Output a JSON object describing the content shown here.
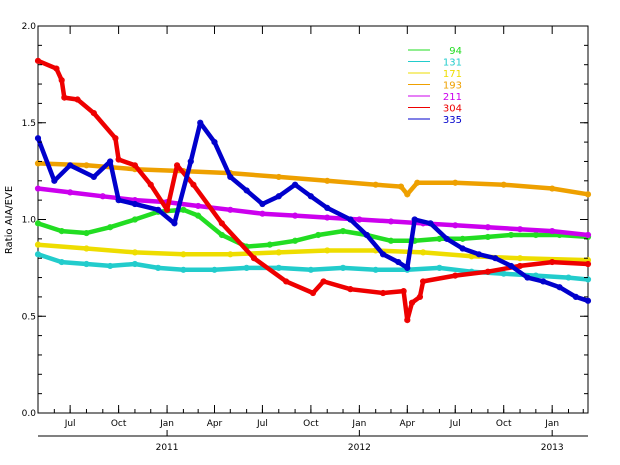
{
  "chart_data": {
    "type": "line",
    "title": "",
    "xlabel": "",
    "ylabel": "Ratio AIA/EVE",
    "ylim": [
      0.0,
      2.0
    ],
    "xlim": [
      "2010-05-01",
      "2013-03-10"
    ],
    "yticks": [
      "0.0",
      "0.5",
      "1.0",
      "1.5",
      "2.0"
    ],
    "month_ticks": [
      {
        "date": "2010-07-01",
        "label": "Jul"
      },
      {
        "date": "2010-10-01",
        "label": "Oct"
      },
      {
        "date": "2011-01-01",
        "label": "Jan"
      },
      {
        "date": "2011-04-01",
        "label": "Apr"
      },
      {
        "date": "2011-07-01",
        "label": "Jul"
      },
      {
        "date": "2011-10-01",
        "label": "Oct"
      },
      {
        "date": "2012-01-01",
        "label": "Jan"
      },
      {
        "date": "2012-04-01",
        "label": "Apr"
      },
      {
        "date": "2012-07-01",
        "label": "Jul"
      },
      {
        "date": "2012-10-01",
        "label": "Oct"
      },
      {
        "date": "2013-01-01",
        "label": "Jan"
      }
    ],
    "year_labels": [
      {
        "date": "2011-01-01",
        "label": "2011"
      },
      {
        "date": "2012-01-01",
        "label": "2012"
      },
      {
        "date": "2013-01-01",
        "label": "2013"
      }
    ],
    "grid": false,
    "legend_position": "top-right",
    "series": [
      {
        "name": "94",
        "color": "#22dd22",
        "points": [
          [
            "2010-05-01",
            0.98
          ],
          [
            "2010-06-15",
            0.94
          ],
          [
            "2010-08-01",
            0.93
          ],
          [
            "2010-09-15",
            0.96
          ],
          [
            "2010-11-01",
            1.0
          ],
          [
            "2010-12-15",
            1.04
          ],
          [
            "2011-02-01",
            1.05
          ],
          [
            "2011-03-01",
            1.02
          ],
          [
            "2011-04-15",
            0.92
          ],
          [
            "2011-06-01",
            0.86
          ],
          [
            "2011-07-15",
            0.87
          ],
          [
            "2011-09-01",
            0.89
          ],
          [
            "2011-10-15",
            0.92
          ],
          [
            "2011-12-01",
            0.94
          ],
          [
            "2012-01-15",
            0.92
          ],
          [
            "2012-03-01",
            0.89
          ],
          [
            "2012-04-15",
            0.89
          ],
          [
            "2012-06-01",
            0.9
          ],
          [
            "2012-07-15",
            0.9
          ],
          [
            "2012-09-01",
            0.91
          ],
          [
            "2012-10-15",
            0.92
          ],
          [
            "2012-12-01",
            0.92
          ],
          [
            "2013-01-15",
            0.92
          ],
          [
            "2013-03-10",
            0.91
          ]
        ]
      },
      {
        "name": "131",
        "color": "#22cccc",
        "points": [
          [
            "2010-05-01",
            0.82
          ],
          [
            "2010-06-15",
            0.78
          ],
          [
            "2010-08-01",
            0.77
          ],
          [
            "2010-09-15",
            0.76
          ],
          [
            "2010-11-01",
            0.77
          ],
          [
            "2010-12-15",
            0.75
          ],
          [
            "2011-02-01",
            0.74
          ],
          [
            "2011-04-01",
            0.74
          ],
          [
            "2011-06-01",
            0.75
          ],
          [
            "2011-08-01",
            0.75
          ],
          [
            "2011-10-01",
            0.74
          ],
          [
            "2011-12-01",
            0.75
          ],
          [
            "2012-02-01",
            0.74
          ],
          [
            "2012-04-01",
            0.74
          ],
          [
            "2012-06-01",
            0.75
          ],
          [
            "2012-08-01",
            0.73
          ],
          [
            "2012-10-01",
            0.72
          ],
          [
            "2012-12-01",
            0.71
          ],
          [
            "2013-02-01",
            0.7
          ],
          [
            "2013-03-10",
            0.69
          ]
        ]
      },
      {
        "name": "171",
        "color": "#eedd00",
        "points": [
          [
            "2010-05-01",
            0.87
          ],
          [
            "2010-08-01",
            0.85
          ],
          [
            "2010-11-01",
            0.83
          ],
          [
            "2011-02-01",
            0.82
          ],
          [
            "2011-05-01",
            0.82
          ],
          [
            "2011-08-01",
            0.83
          ],
          [
            "2011-11-01",
            0.84
          ],
          [
            "2012-02-01",
            0.84
          ],
          [
            "2012-05-01",
            0.83
          ],
          [
            "2012-08-01",
            0.81
          ],
          [
            "2012-11-01",
            0.8
          ],
          [
            "2013-03-10",
            0.79
          ]
        ]
      },
      {
        "name": "193",
        "color": "#eea000",
        "points": [
          [
            "2010-05-01",
            1.29
          ],
          [
            "2010-08-01",
            1.28
          ],
          [
            "2010-11-01",
            1.26
          ],
          [
            "2011-02-01",
            1.25
          ],
          [
            "2011-05-01",
            1.24
          ],
          [
            "2011-08-01",
            1.22
          ],
          [
            "2011-11-01",
            1.2
          ],
          [
            "2012-02-01",
            1.18
          ],
          [
            "2012-03-20",
            1.17
          ],
          [
            "2012-04-01",
            1.13
          ],
          [
            "2012-04-20",
            1.19
          ],
          [
            "2012-07-01",
            1.19
          ],
          [
            "2012-10-01",
            1.18
          ],
          [
            "2013-01-01",
            1.16
          ],
          [
            "2013-03-10",
            1.13
          ]
        ]
      },
      {
        "name": "211",
        "color": "#cc00ee",
        "points": [
          [
            "2010-05-01",
            1.16
          ],
          [
            "2010-07-01",
            1.14
          ],
          [
            "2010-09-01",
            1.12
          ],
          [
            "2010-11-01",
            1.1
          ],
          [
            "2011-01-01",
            1.09
          ],
          [
            "2011-03-01",
            1.07
          ],
          [
            "2011-05-01",
            1.05
          ],
          [
            "2011-07-01",
            1.03
          ],
          [
            "2011-09-01",
            1.02
          ],
          [
            "2011-11-01",
            1.01
          ],
          [
            "2012-01-01",
            1.0
          ],
          [
            "2012-03-01",
            0.99
          ],
          [
            "2012-05-01",
            0.98
          ],
          [
            "2012-07-01",
            0.97
          ],
          [
            "2012-09-01",
            0.96
          ],
          [
            "2012-11-01",
            0.95
          ],
          [
            "2013-01-01",
            0.94
          ],
          [
            "2013-03-10",
            0.92
          ]
        ]
      },
      {
        "name": "304",
        "color": "#ee0000",
        "points": [
          [
            "2010-05-01",
            1.82
          ],
          [
            "2010-06-05",
            1.78
          ],
          [
            "2010-06-15",
            1.72
          ],
          [
            "2010-06-20",
            1.63
          ],
          [
            "2010-07-15",
            1.62
          ],
          [
            "2010-08-15",
            1.55
          ],
          [
            "2010-09-25",
            1.42
          ],
          [
            "2010-10-01",
            1.31
          ],
          [
            "2010-11-01",
            1.28
          ],
          [
            "2010-12-01",
            1.18
          ],
          [
            "2011-01-01",
            1.05
          ],
          [
            "2011-01-20",
            1.28
          ],
          [
            "2011-02-20",
            1.18
          ],
          [
            "2011-04-15",
            0.98
          ],
          [
            "2011-06-15",
            0.8
          ],
          [
            "2011-08-15",
            0.68
          ],
          [
            "2011-10-05",
            0.62
          ],
          [
            "2011-10-25",
            0.68
          ],
          [
            "2011-12-15",
            0.64
          ],
          [
            "2012-02-15",
            0.62
          ],
          [
            "2012-03-25",
            0.63
          ],
          [
            "2012-04-01",
            0.48
          ],
          [
            "2012-04-10",
            0.57
          ],
          [
            "2012-04-25",
            0.6
          ],
          [
            "2012-05-01",
            0.68
          ],
          [
            "2012-07-01",
            0.71
          ],
          [
            "2012-09-01",
            0.73
          ],
          [
            "2012-11-01",
            0.76
          ],
          [
            "2013-01-01",
            0.78
          ],
          [
            "2013-03-10",
            0.77
          ]
        ]
      },
      {
        "name": "335",
        "color": "#0000cc",
        "points": [
          [
            "2010-05-01",
            1.42
          ],
          [
            "2010-06-01",
            1.2
          ],
          [
            "2010-07-01",
            1.28
          ],
          [
            "2010-08-15",
            1.22
          ],
          [
            "2010-09-15",
            1.3
          ],
          [
            "2010-10-01",
            1.1
          ],
          [
            "2010-11-01",
            1.08
          ],
          [
            "2010-12-15",
            1.05
          ],
          [
            "2011-01-15",
            0.98
          ],
          [
            "2011-02-15",
            1.3
          ],
          [
            "2011-03-05",
            1.5
          ],
          [
            "2011-04-01",
            1.4
          ],
          [
            "2011-05-01",
            1.22
          ],
          [
            "2011-06-01",
            1.15
          ],
          [
            "2011-07-01",
            1.08
          ],
          [
            "2011-08-01",
            1.12
          ],
          [
            "2011-09-01",
            1.18
          ],
          [
            "2011-10-01",
            1.12
          ],
          [
            "2011-11-01",
            1.06
          ],
          [
            "2011-12-15",
            1.0
          ],
          [
            "2012-01-15",
            0.92
          ],
          [
            "2012-02-15",
            0.82
          ],
          [
            "2012-03-15",
            0.78
          ],
          [
            "2012-04-01",
            0.75
          ],
          [
            "2012-04-15",
            1.0
          ],
          [
            "2012-05-15",
            0.98
          ],
          [
            "2012-06-15",
            0.9
          ],
          [
            "2012-07-15",
            0.85
          ],
          [
            "2012-08-15",
            0.82
          ],
          [
            "2012-09-15",
            0.8
          ],
          [
            "2012-10-15",
            0.76
          ],
          [
            "2012-11-15",
            0.7
          ],
          [
            "2012-12-15",
            0.68
          ],
          [
            "2013-01-15",
            0.65
          ],
          [
            "2013-02-15",
            0.6
          ],
          [
            "2013-03-10",
            0.58
          ]
        ]
      }
    ]
  }
}
